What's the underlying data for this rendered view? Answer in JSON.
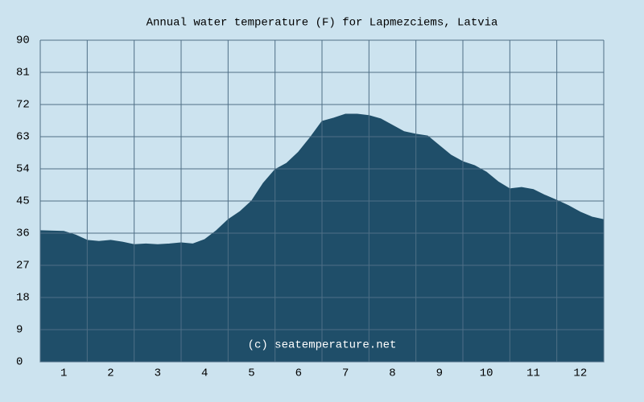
{
  "chart_data": {
    "type": "area",
    "title": "Annual water temperature (F) for Lapmezciems, Latvia",
    "annotation": "(c) seatemperature.net",
    "color": "#1f4e69",
    "background": "#cce3ef",
    "grid": true,
    "x": [
      0.5,
      1,
      1.25,
      1.5,
      1.75,
      2,
      2.25,
      2.5,
      2.75,
      3,
      3.25,
      3.5,
      3.75,
      4,
      4.25,
      4.5,
      4.75,
      5,
      5.25,
      5.5,
      5.75,
      6,
      6.25,
      6.5,
      6.75,
      7,
      7.25,
      7.5,
      7.75,
      8,
      8.25,
      8.5,
      8.75,
      9,
      9.25,
      9.5,
      9.75,
      10,
      10.25,
      10.5,
      10.75,
      11,
      11.25,
      11.5,
      11.75,
      12,
      12.25,
      12.5
    ],
    "values": [
      36.7,
      36.5,
      35.5,
      34,
      33.7,
      34,
      33.5,
      32.8,
      33,
      32.8,
      33,
      33.3,
      33,
      34.2,
      36.7,
      39.8,
      42,
      45,
      50,
      53.8,
      55.6,
      58.7,
      62.8,
      67.3,
      68.2,
      69.3,
      69.3,
      68.9,
      68,
      66.2,
      64.4,
      63.7,
      63.2,
      60.5,
      57.8,
      56,
      54.9,
      53.1,
      50.4,
      48.4,
      48.8,
      48.2,
      46.6,
      45.2,
      43.7,
      41.9,
      40.5,
      39.8
    ],
    "xlim": [
      0.5,
      12.5
    ],
    "xticks": [
      1,
      2,
      3,
      4,
      5,
      6,
      7,
      8,
      9,
      10,
      11,
      12
    ],
    "ylim": [
      0,
      90
    ],
    "yticks": [
      0,
      9,
      18,
      27,
      36,
      45,
      54,
      63,
      72,
      81,
      90
    ]
  }
}
